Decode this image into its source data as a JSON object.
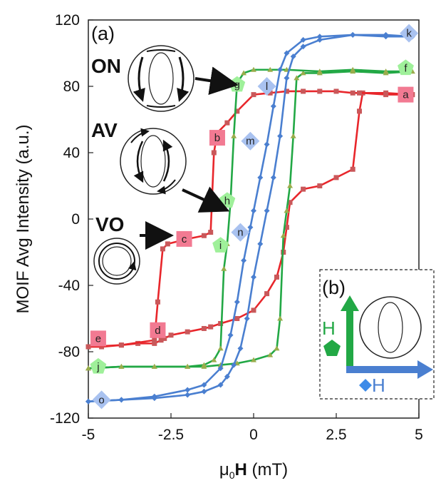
{
  "chart_data": {
    "type": "line",
    "panel_label": "(a)",
    "ylabel": "MOIF Avg Intensity (a.u.)",
    "xlabel_parts": {
      "mu": "μ",
      "sub": "0",
      "h": "H",
      "unit": " (mT)"
    },
    "xlim": [
      -5,
      5
    ],
    "ylim": [
      -120,
      120
    ],
    "x_ticks": [
      -5,
      -2.5,
      0,
      2.5,
      5
    ],
    "x_tick_labels": [
      "-5",
      "-2.5",
      "0",
      "2.5",
      "5"
    ],
    "y_ticks": [
      -120,
      -80,
      -40,
      0,
      40,
      80,
      120
    ],
    "y_tick_labels": [
      "-120",
      "-80",
      "-40",
      "0",
      "40",
      "80",
      "120"
    ],
    "grid": false,
    "series": [
      {
        "color": "#e8262b",
        "marker_color": "#c9585a",
        "marker": "square",
        "branches": [
          {
            "x": [
              4.8,
              4.0,
              3.3,
              3.2,
              3.0,
              2.5,
              2.0,
              1.5,
              1.1,
              1.0,
              0.9,
              0.7,
              0.4,
              0.0,
              -0.5,
              -1.0,
              -1.3,
              -1.5,
              -2.0,
              -2.5,
              -2.7,
              -2.8,
              -3.0,
              -3.5,
              -4.0,
              -4.6,
              -5.0
            ],
            "y": [
              75,
              75,
              76,
              65,
              30,
              25,
              20,
              18,
              10,
              -5,
              -20,
              -35,
              -45,
              -55,
              -60,
              -63,
              -65,
              -66,
              -68,
              -70,
              -72,
              -73,
              -75,
              -75,
              -76,
              -77,
              -77
            ]
          },
          {
            "x": [
              -5.0,
              -4.0,
              -3.0,
              -2.9,
              -2.75,
              -2.6,
              -2.0,
              -1.5,
              -1.3,
              -1.2,
              -1.1,
              -0.8,
              -0.5,
              0.0,
              0.5,
              1.0,
              1.5,
              2.0,
              2.5,
              3.0,
              3.2,
              4.0,
              4.8
            ],
            "y": [
              -77,
              -76,
              -73,
              -50,
              -18,
              -15,
              -12,
              -10,
              -8,
              40,
              52,
              58,
              65,
              75,
              76,
              77,
              77,
              77,
              77,
              76,
              76,
              76,
              75
            ]
          }
        ]
      },
      {
        "color": "#22a845",
        "marker_color": "#9aad4c",
        "marker": "triangle",
        "branches": [
          {
            "x": [
              4.8,
              4.0,
              3.0,
              2.0,
              1.5,
              1.3,
              1.2,
              1.1,
              1.0,
              0.9,
              0.8,
              0.7,
              0.5,
              0.0,
              -0.5,
              -1.0,
              -1.5,
              -2.0,
              -3.0,
              -4.0,
              -5.0
            ],
            "y": [
              89,
              88,
              89,
              88,
              88,
              85,
              50,
              20,
              5,
              -10,
              -60,
              -78,
              -82,
              -85,
              -87,
              -88,
              -89,
              -89,
              -89,
              -89,
              -90
            ]
          },
          {
            "x": [
              -5.0,
              -4.0,
              -3.0,
              -2.0,
              -1.5,
              -1.2,
              -1.0,
              -0.9,
              -0.8,
              -0.7,
              -0.6,
              -0.5,
              -0.3,
              0.0,
              0.5,
              1.0,
              2.0,
              3.0,
              4.0,
              4.8
            ],
            "y": [
              -90,
              -89,
              -89,
              -89,
              -88,
              -85,
              -78,
              -30,
              -15,
              10,
              50,
              82,
              88,
              90,
              90,
              90,
              89,
              90,
              89,
              89
            ]
          }
        ]
      },
      {
        "color": "#4a7fd0",
        "marker_color": "#4a7fd0",
        "marker": "diamond",
        "branches": [
          {
            "x": [
              4.8,
              4.0,
              3.0,
              2.0,
              1.5,
              1.2,
              1.0,
              0.8,
              0.6,
              0.4,
              0.2,
              0.0,
              -0.2,
              -0.4,
              -0.6,
              -0.8,
              -1.0,
              -1.5,
              -2.0,
              -3.0,
              -4.0,
              -5.0
            ],
            "y": [
              110,
              110,
              111,
              108,
              104,
              98,
              85,
              50,
              25,
              5,
              -15,
              -35,
              -60,
              -78,
              -88,
              -95,
              -100,
              -104,
              -106,
              -108,
              -109,
              -110
            ]
          },
          {
            "x": [
              -5.0,
              -4.0,
              -3.0,
              -2.0,
              -1.5,
              -1.0,
              -0.7,
              -0.5,
              -0.3,
              -0.1,
              0.0,
              0.2,
              0.4,
              0.6,
              0.8,
              1.0,
              1.5,
              2.0,
              3.0,
              4.0,
              4.8
            ],
            "y": [
              -110,
              -109,
              -107,
              -103,
              -100,
              -90,
              -70,
              -50,
              -25,
              -5,
              5,
              25,
              45,
              68,
              90,
              100,
              108,
              110,
              111,
              111,
              110
            ]
          }
        ]
      }
    ],
    "point_labels": [
      {
        "text": "a",
        "x": 4.6,
        "y": 75,
        "series": 0
      },
      {
        "text": "b",
        "x": -1.1,
        "y": 49,
        "series": 0
      },
      {
        "text": "c",
        "x": -2.1,
        "y": -12,
        "series": 0
      },
      {
        "text": "d",
        "x": -2.9,
        "y": -67,
        "series": 0
      },
      {
        "text": "e",
        "x": -4.7,
        "y": -72,
        "series": 0
      },
      {
        "text": "f",
        "x": 4.6,
        "y": 91,
        "series": 1
      },
      {
        "text": "g",
        "x": -0.5,
        "y": 81,
        "series": 1
      },
      {
        "text": "h",
        "x": -0.8,
        "y": 11,
        "series": 1
      },
      {
        "text": "i",
        "x": -1.0,
        "y": -16,
        "series": 1
      },
      {
        "text": "j",
        "x": -4.7,
        "y": -89,
        "series": 1
      },
      {
        "text": "k",
        "x": 4.7,
        "y": 112,
        "series": 2
      },
      {
        "text": "l",
        "x": 0.4,
        "y": 80,
        "series": 2
      },
      {
        "text": "m",
        "x": -0.1,
        "y": 47,
        "series": 2
      },
      {
        "text": "n",
        "x": -0.4,
        "y": -8,
        "series": 2
      },
      {
        "text": "o",
        "x": -4.6,
        "y": -109,
        "series": 2
      }
    ],
    "state_labels": [
      "ON",
      "AV",
      "VO"
    ],
    "inset": {
      "label": "(b)",
      "green_h": "H",
      "blue_h": "H"
    }
  },
  "colors": {
    "red": "#e8262b",
    "green": "#22a845",
    "blue": "#4a7fd0",
    "pink_marker": "#f27a92",
    "green_marker": "#9ff09a",
    "blue_marker": "#a9c2f0"
  },
  "icons": {
    "green_pentagon": "green-pentagon-icon",
    "blue_diamond": "blue-diamond-icon"
  }
}
